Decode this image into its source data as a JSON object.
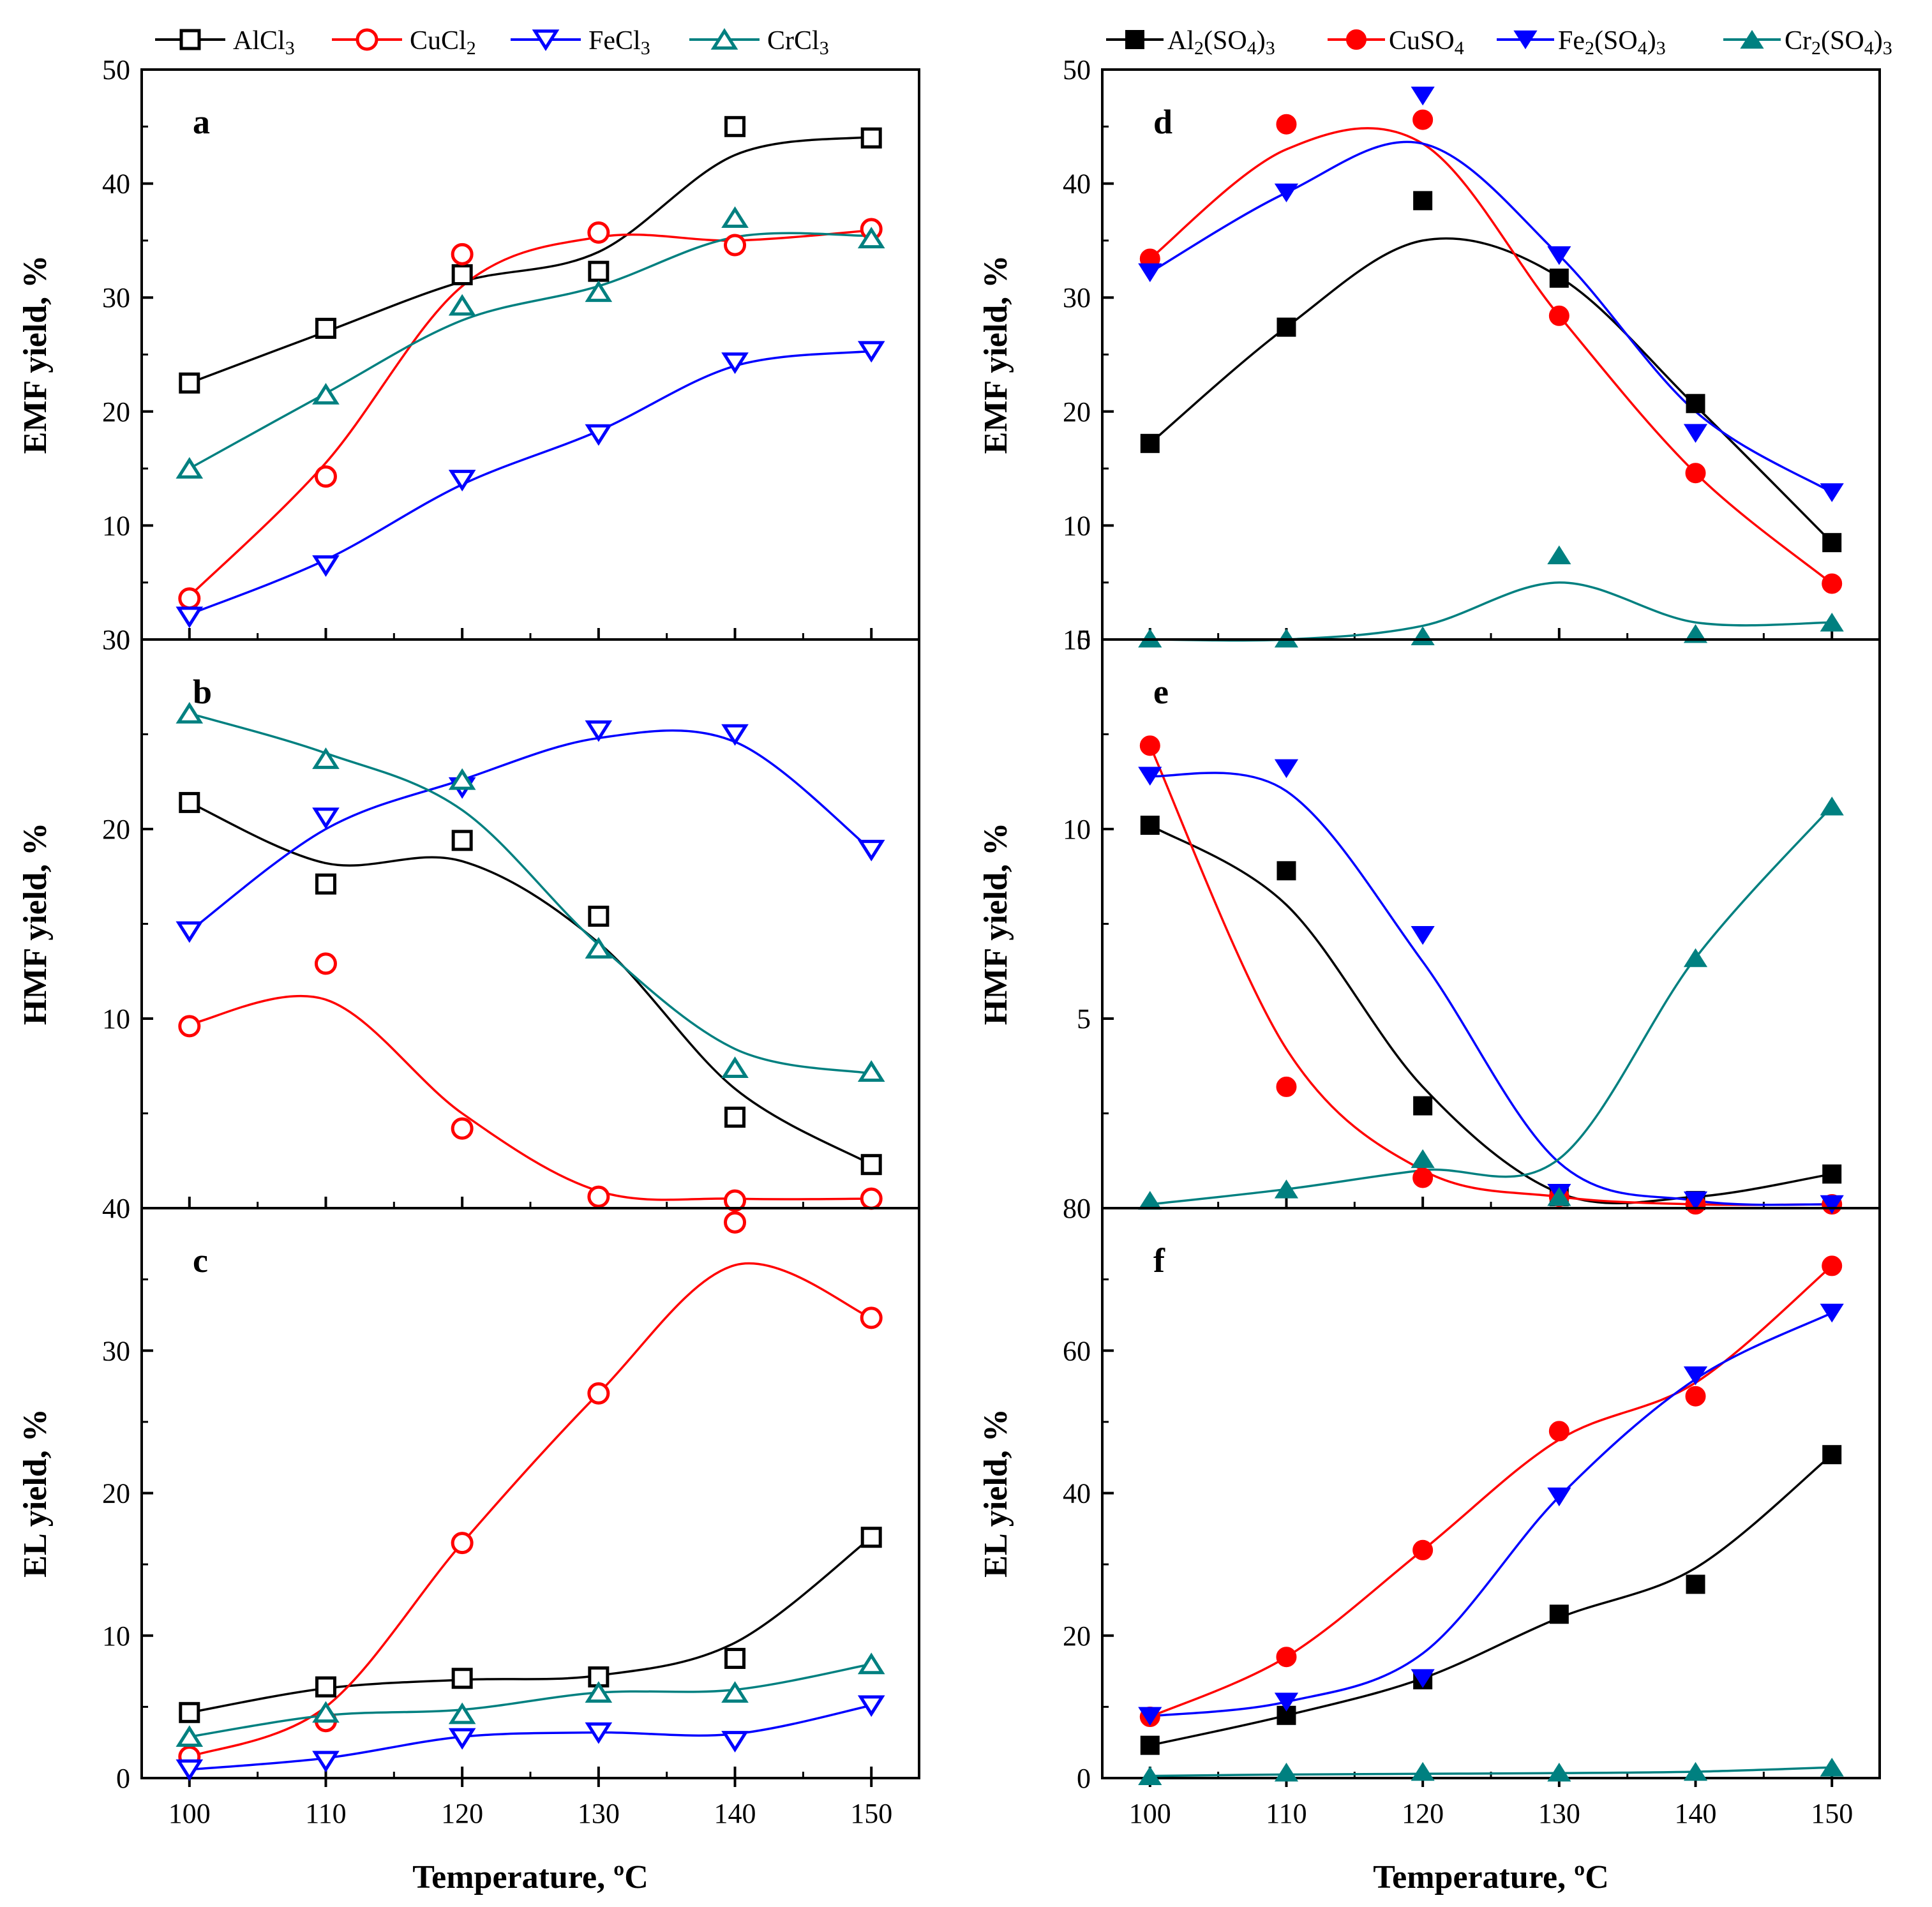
{
  "figure": {
    "xlabel": "Temperature, ºC",
    "x_ticks": [
      "100",
      "110",
      "120",
      "130",
      "140",
      "150"
    ],
    "legend_left": [
      {
        "key": "AlCl3",
        "label_main": "AlCl",
        "label_sub": "3",
        "label_tail": ""
      },
      {
        "key": "CuCl2",
        "label_main": "CuCl",
        "label_sub": "2",
        "label_tail": ""
      },
      {
        "key": "FeCl3",
        "label_main": "FeCl",
        "label_sub": "3",
        "label_tail": ""
      },
      {
        "key": "CrCl3",
        "label_main": "CrCl",
        "label_sub": "3",
        "label_tail": ""
      }
    ],
    "legend_right": [
      {
        "key": "Al2SO43",
        "parts": [
          {
            "t": "Al"
          },
          {
            "t": "2",
            "sub": true
          },
          {
            "t": "(SO"
          },
          {
            "t": "4",
            "sub": true
          },
          {
            "t": ")"
          },
          {
            "t": "3",
            "sub": true
          }
        ]
      },
      {
        "key": "CuSO4",
        "parts": [
          {
            "t": "CuSO"
          },
          {
            "t": "4",
            "sub": true
          }
        ]
      },
      {
        "key": "Fe2SO43",
        "parts": [
          {
            "t": "Fe"
          },
          {
            "t": "2",
            "sub": true
          },
          {
            "t": "(SO"
          },
          {
            "t": "4",
            "sub": true
          },
          {
            "t": ")"
          },
          {
            "t": "3",
            "sub": true
          }
        ]
      },
      {
        "key": "Cr2SO43",
        "parts": [
          {
            "t": "Cr"
          },
          {
            "t": "2",
            "sub": true
          },
          {
            "t": "(SO"
          },
          {
            "t": "4",
            "sub": true
          },
          {
            "t": ")"
          },
          {
            "t": "3",
            "sub": true
          }
        ]
      }
    ]
  },
  "colors": {
    "AlCl3": "#000000",
    "CuCl2": "#ff0000",
    "FeCl3": "#0000ff",
    "CrCl3": "#008080",
    "Al2SO43": "#000000",
    "CuSO4": "#ff0000",
    "Fe2SO43": "#0000ff",
    "Cr2SO43": "#008080"
  },
  "markers": {
    "AlCl3": "square-open",
    "CuCl2": "circle-open",
    "FeCl3": "triangle-down-open",
    "CrCl3": "triangle-up-open",
    "Al2SO43": "square-filled",
    "CuSO4": "circle-filled",
    "Fe2SO43": "triangle-down-filled",
    "Cr2SO43": "triangle-up-filled"
  },
  "chart_data": [
    {
      "panel": "a",
      "type": "line",
      "ylabel": "EMF yield, %",
      "ylim": [
        0,
        50
      ],
      "yticks": [
        "0",
        "10",
        "20",
        "30",
        "40",
        "50"
      ],
      "x": [
        100,
        110,
        120,
        130,
        140,
        150
      ],
      "series": [
        {
          "name": "AlCl3",
          "values": [
            22.5,
            27.3,
            32.0,
            32.3,
            45.0,
            44.0
          ]
        },
        {
          "name": "CuCl2",
          "values": [
            3.6,
            14.3,
            33.8,
            35.7,
            34.6,
            36.0
          ]
        },
        {
          "name": "FeCl3",
          "values": [
            2.0,
            6.5,
            14.0,
            18.0,
            24.3,
            25.3
          ]
        },
        {
          "name": "CrCl3",
          "values": [
            15.0,
            21.5,
            29.3,
            30.5,
            37.0,
            35.2
          ]
        }
      ],
      "curves": {
        "AlCl3": [
          22.5,
          27.0,
          31.4,
          34.0,
          42.5,
          44.1
        ],
        "CuCl2": [
          3.8,
          15.5,
          31.0,
          35.3,
          35.0,
          35.9
        ],
        "FeCl3": [
          2.2,
          7.0,
          13.6,
          18.3,
          24.0,
          25.3
        ],
        "CrCl3": [
          15.0,
          21.6,
          28.0,
          31.0,
          35.3,
          35.4
        ]
      }
    },
    {
      "panel": "b",
      "type": "line",
      "ylabel": "HMF yield, %",
      "ylim": [
        0,
        30
      ],
      "yticks": [
        "0",
        "10",
        "20",
        "30"
      ],
      "x": [
        100,
        110,
        120,
        130,
        140,
        150
      ],
      "series": [
        {
          "name": "AlCl3",
          "values": [
            21.4,
            17.1,
            19.4,
            15.4,
            4.8,
            2.3
          ]
        },
        {
          "name": "CuCl2",
          "values": [
            9.6,
            12.9,
            4.2,
            0.6,
            0.4,
            0.5
          ]
        },
        {
          "name": "FeCl3",
          "values": [
            14.6,
            20.6,
            22.2,
            25.2,
            25.0,
            18.9
          ]
        },
        {
          "name": "CrCl3",
          "values": [
            26.1,
            23.7,
            22.6,
            13.7,
            7.4,
            7.2
          ]
        }
      ],
      "curves": {
        "AlCl3": [
          21.4,
          18.2,
          18.3,
          14.0,
          6.3,
          2.3
        ],
        "CuCl2": [
          9.7,
          11.0,
          5.0,
          0.9,
          0.5,
          0.5
        ],
        "FeCl3": [
          14.6,
          20.0,
          22.6,
          24.8,
          24.6,
          18.9
        ],
        "CrCl3": [
          26.1,
          24.0,
          21.0,
          13.9,
          8.4,
          7.1
        ]
      }
    },
    {
      "panel": "c",
      "type": "line",
      "ylabel": "EL yield, %",
      "ylim": [
        0,
        40
      ],
      "yticks": [
        "0",
        "10",
        "20",
        "30",
        "40"
      ],
      "x": [
        100,
        110,
        120,
        130,
        140,
        150
      ],
      "series": [
        {
          "name": "AlCl3",
          "values": [
            4.6,
            6.4,
            7.0,
            7.1,
            8.4,
            16.9
          ]
        },
        {
          "name": "CuCl2",
          "values": [
            1.5,
            4.0,
            16.5,
            27.0,
            39.0,
            32.3
          ]
        },
        {
          "name": "FeCl3",
          "values": [
            0.6,
            1.2,
            2.8,
            3.2,
            2.6,
            5.1
          ]
        },
        {
          "name": "CrCl3",
          "values": [
            2.9,
            4.6,
            4.5,
            6.0,
            6.0,
            8.0
          ]
        }
      ],
      "curves": {
        "AlCl3": [
          4.6,
          6.3,
          6.9,
          7.2,
          9.5,
          16.9
        ],
        "CuCl2": [
          1.5,
          5.0,
          16.5,
          27.0,
          36.0,
          32.3
        ],
        "FeCl3": [
          0.6,
          1.4,
          2.9,
          3.2,
          3.1,
          5.1
        ],
        "CrCl3": [
          2.9,
          4.4,
          4.8,
          6.0,
          6.2,
          8.0
        ]
      }
    },
    {
      "panel": "d",
      "type": "line",
      "ylabel": "EMF yield, %",
      "ylim": [
        0,
        50
      ],
      "yticks": [
        "0",
        "10",
        "20",
        "30",
        "40",
        "50"
      ],
      "x": [
        100,
        110,
        120,
        130,
        140,
        150
      ],
      "series": [
        {
          "name": "Al2SO43",
          "values": [
            17.2,
            27.4,
            38.5,
            31.7,
            20.7,
            8.5
          ]
        },
        {
          "name": "CuSO4",
          "values": [
            33.4,
            45.2,
            45.6,
            28.4,
            14.6,
            4.9
          ]
        },
        {
          "name": "Fe2SO43",
          "values": [
            32.2,
            39.2,
            47.7,
            33.7,
            18.1,
            12.9
          ]
        },
        {
          "name": "Cr2SO43",
          "values": [
            0.1,
            0.1,
            0.3,
            7.4,
            0.5,
            1.5
          ]
        }
      ],
      "curves": {
        "Al2SO43": [
          17.2,
          27.4,
          35.0,
          31.8,
          20.5,
          8.5
        ],
        "CuSO4": [
          33.4,
          43.0,
          43.5,
          28.4,
          14.6,
          4.9
        ],
        "Fe2SO43": [
          32.2,
          39.2,
          43.5,
          33.7,
          20.0,
          12.9
        ],
        "Cr2SO43": [
          0.0,
          0.0,
          1.2,
          5.0,
          1.5,
          1.5
        ]
      }
    },
    {
      "panel": "e",
      "type": "line",
      "ylabel": "HMF yield, %",
      "ylim": [
        0,
        15
      ],
      "yticks": [
        "0",
        "5",
        "10",
        "15"
      ],
      "x": [
        100,
        110,
        120,
        130,
        140,
        150
      ],
      "series": [
        {
          "name": "Al2SO43",
          "values": [
            10.1,
            8.9,
            2.7,
            0.3,
            0.2,
            0.9
          ]
        },
        {
          "name": "CuSO4",
          "values": [
            12.2,
            3.2,
            0.8,
            0.3,
            0.1,
            0.1
          ]
        },
        {
          "name": "Fe2SO43",
          "values": [
            11.4,
            11.6,
            7.2,
            0.4,
            0.2,
            0.1
          ]
        },
        {
          "name": "Cr2SO43",
          "values": [
            0.2,
            0.5,
            1.3,
            0.3,
            6.6,
            10.6
          ]
        }
      ],
      "curves": {
        "Al2SO43": [
          10.1,
          8.0,
          3.2,
          0.4,
          0.3,
          0.9
        ],
        "CuSO4": [
          12.2,
          4.2,
          1.0,
          0.3,
          0.1,
          0.1
        ],
        "Fe2SO43": [
          11.4,
          11.0,
          6.5,
          1.2,
          0.2,
          0.1
        ],
        "Cr2SO43": [
          0.1,
          0.5,
          1.0,
          1.3,
          6.6,
          10.6
        ]
      }
    },
    {
      "panel": "f",
      "type": "line",
      "ylabel": "EL yield, %",
      "ylim": [
        0,
        80
      ],
      "yticks": [
        "0",
        "20",
        "40",
        "60",
        "80"
      ],
      "x": [
        100,
        110,
        120,
        130,
        140,
        150
      ],
      "series": [
        {
          "name": "Al2SO43",
          "values": [
            4.6,
            8.8,
            13.8,
            23.0,
            27.2,
            45.4
          ]
        },
        {
          "name": "CuSO4",
          "values": [
            8.6,
            17.0,
            32.0,
            48.7,
            53.6,
            71.9
          ]
        },
        {
          "name": "Fe2SO43",
          "values": [
            8.7,
            10.7,
            14.0,
            39.5,
            56.5,
            65.3
          ]
        },
        {
          "name": "Cr2SO43",
          "values": [
            0.3,
            0.8,
            0.9,
            0.8,
            0.9,
            1.5
          ]
        }
      ],
      "curves": {
        "Al2SO43": [
          4.6,
          8.8,
          14.0,
          22.5,
          29.5,
          45.4
        ],
        "CuSO4": [
          8.6,
          17.0,
          32.0,
          47.5,
          55.5,
          71.9
        ],
        "Fe2SO43": [
          8.7,
          10.7,
          17.5,
          39.5,
          56.0,
          65.3
        ],
        "Cr2SO43": [
          0.3,
          0.5,
          0.6,
          0.7,
          0.9,
          1.5
        ]
      }
    }
  ]
}
